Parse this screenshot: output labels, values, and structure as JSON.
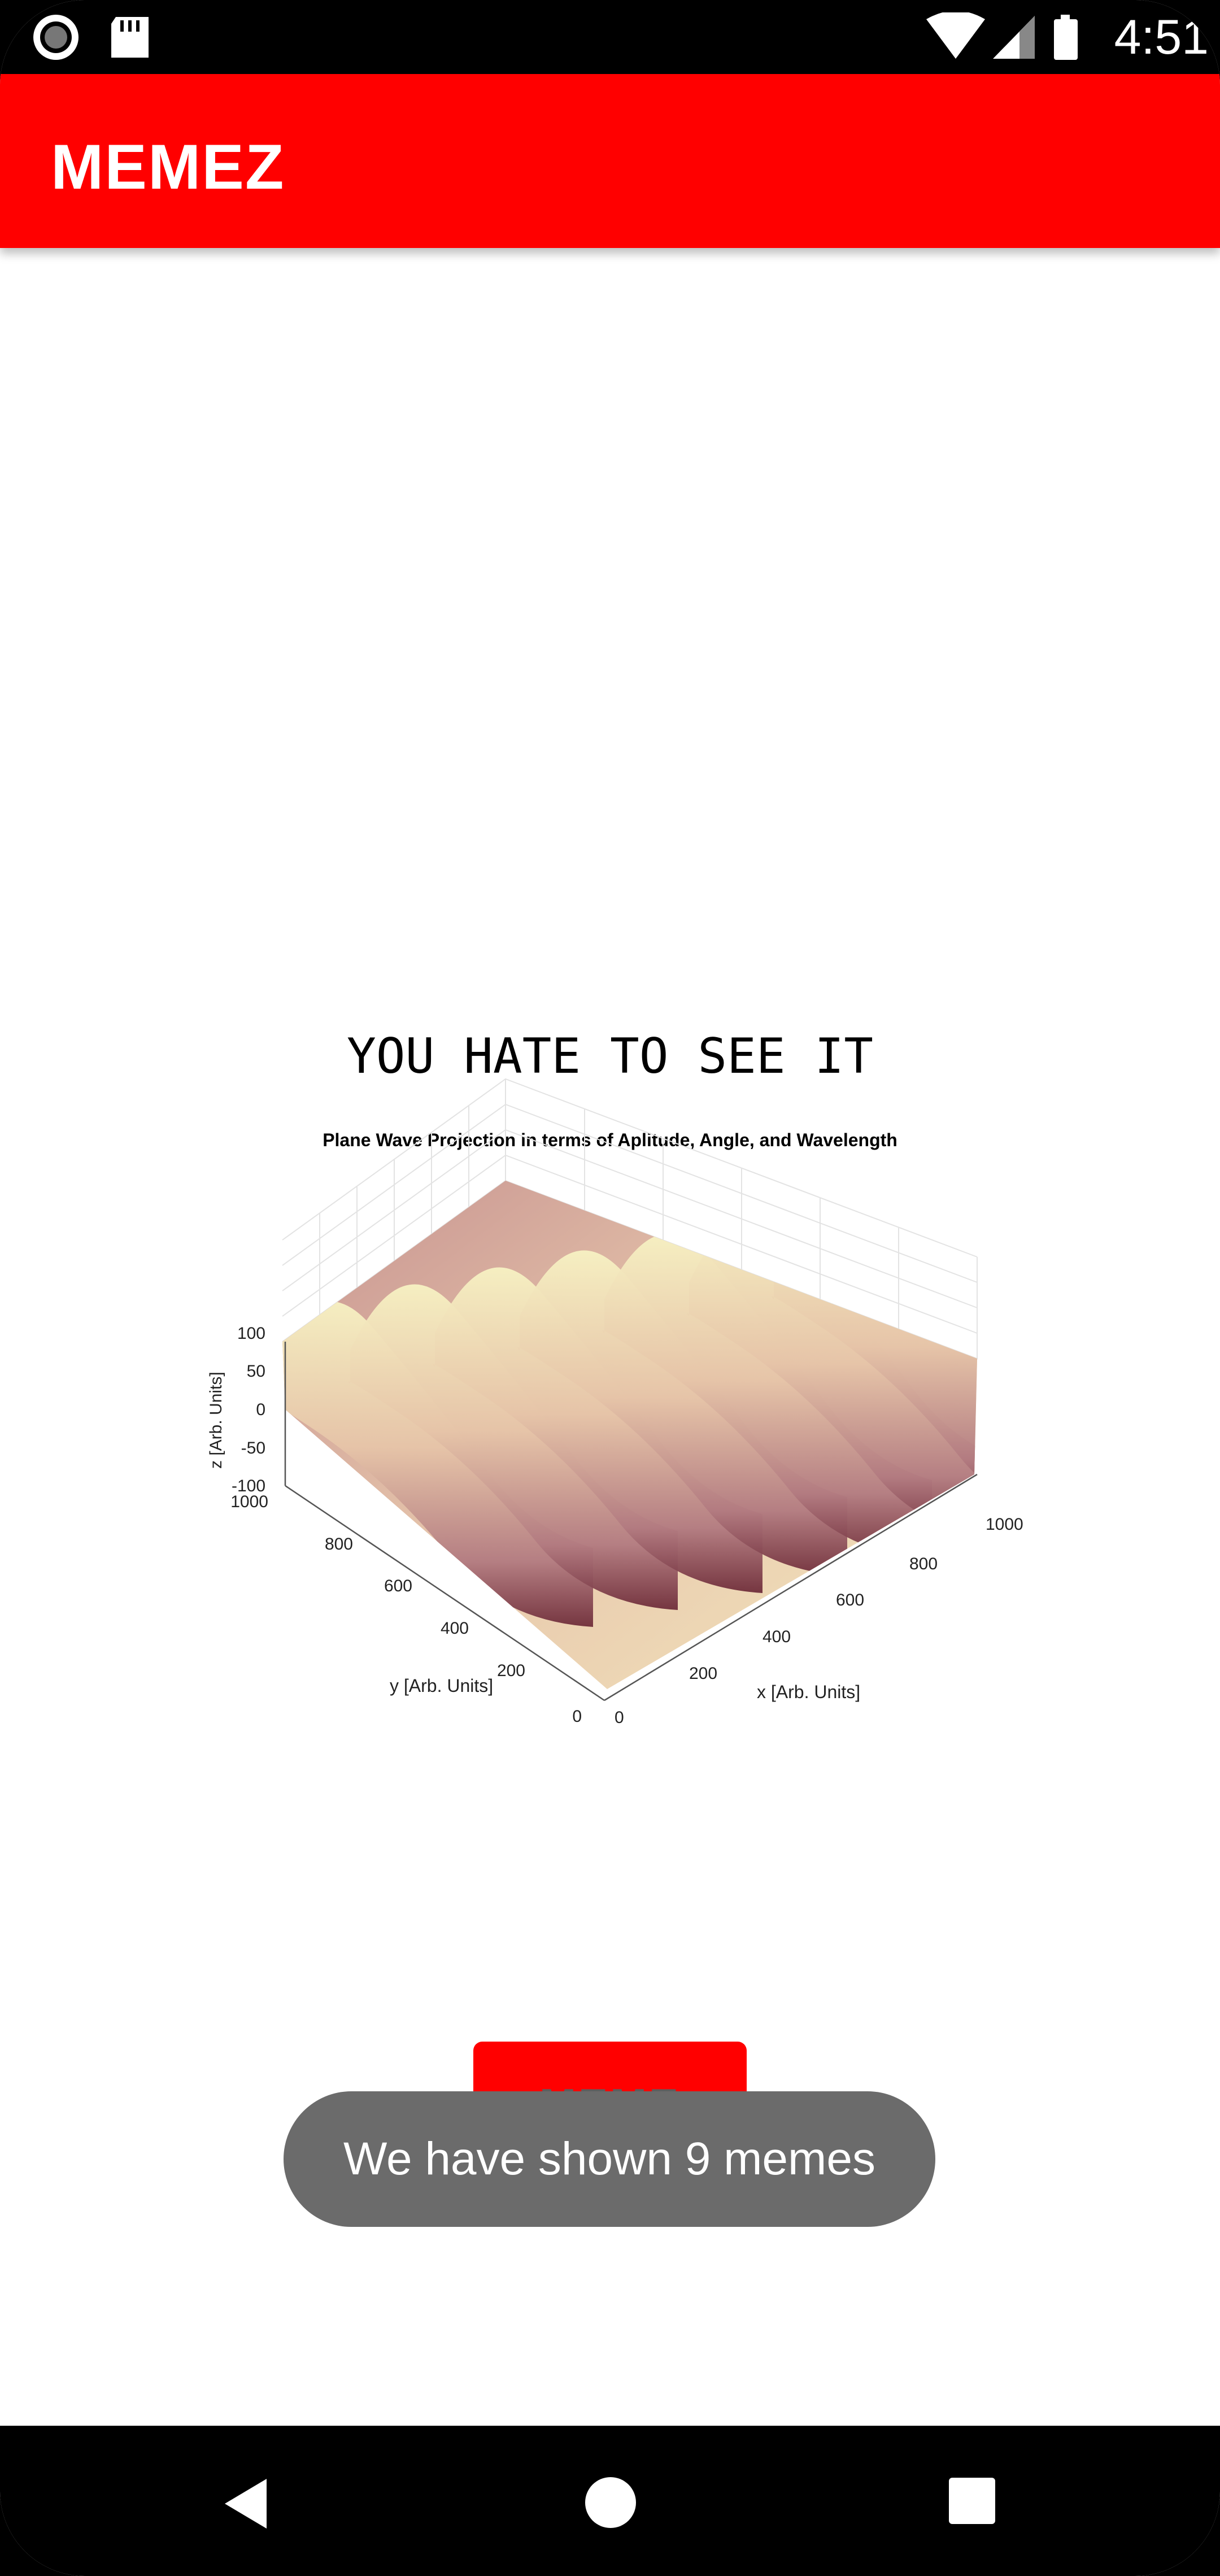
{
  "status_bar": {
    "time": "4:51",
    "icons": [
      "record-icon",
      "sd-card-icon",
      "wifi-icon",
      "cell-signal-icon",
      "battery-icon"
    ]
  },
  "app_bar": {
    "title": "MEMEZ",
    "color": "#ff0000"
  },
  "meme": {
    "caption": "YOU HATE TO SEE IT",
    "chart_data": {
      "type": "surface",
      "title": "Plane Wave Projection in  terms of Aplitude, Angle, and Wavelength",
      "xlabel": "x [Arb. Units]",
      "ylabel": "y [Arb. Units]",
      "zlabel": "z [Arb. Units]",
      "x_ticks": [
        "0",
        "200",
        "400",
        "600",
        "800",
        "1000"
      ],
      "y_ticks": [
        "0",
        "200",
        "400",
        "600",
        "800",
        "1000"
      ],
      "z_ticks": [
        "100",
        "50",
        "0",
        "-50",
        "-100"
      ],
      "xlim": [
        0,
        1000
      ],
      "ylim": [
        0,
        1000
      ],
      "zlim": [
        -100,
        100
      ],
      "grid": true,
      "colormap": [
        "#6f2d3a",
        "#b27a80",
        "#e6c4a8",
        "#f7f2c3"
      ]
    }
  },
  "button": {
    "label": "MEME"
  },
  "toast": {
    "text": "We have shown 9 memes"
  },
  "nav": {
    "icons": [
      "back-icon",
      "home-icon",
      "recents-icon"
    ]
  }
}
